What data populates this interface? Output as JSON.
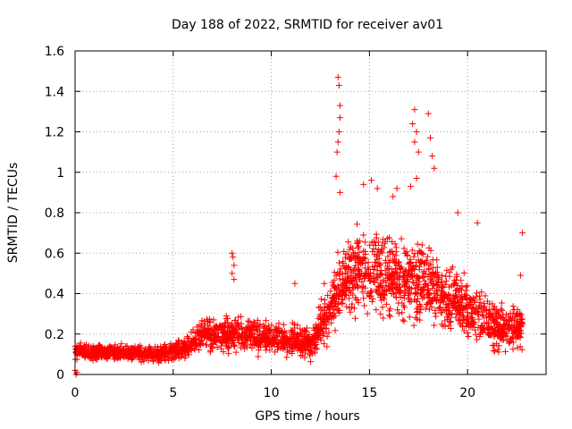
{
  "chart_data": {
    "type": "scatter",
    "title": "Day 188 of 2022, SRMTID for receiver av01",
    "xlabel": "GPS time / hours",
    "ylabel": "SRMTID / TECUs",
    "xlim": [
      0,
      24
    ],
    "ylim": [
      0,
      1.6
    ],
    "xticks": [
      0,
      5,
      10,
      15,
      20
    ],
    "xtick_labels": [
      "0",
      "5",
      "10",
      "15",
      "20"
    ],
    "yticks": [
      0,
      0.2,
      0.4,
      0.6,
      0.8,
      1.0,
      1.2,
      1.4,
      1.6
    ],
    "ytick_labels": [
      "0",
      "0.2",
      "0.4",
      "0.6",
      "0.8",
      "1",
      "1.2",
      "1.4",
      "1.6"
    ],
    "grid": true,
    "marker": "+",
    "marker_color": "#ff0000",
    "series_name": "av01",
    "x_extent": [
      0.0,
      22.8
    ],
    "profile": [
      {
        "t": 0.0,
        "base": 0.11,
        "spread": 0.05
      },
      {
        "t": 2.0,
        "base": 0.11,
        "spread": 0.05
      },
      {
        "t": 4.0,
        "base": 0.1,
        "spread": 0.05
      },
      {
        "t": 5.5,
        "base": 0.12,
        "spread": 0.06
      },
      {
        "t": 6.5,
        "base": 0.2,
        "spread": 0.1
      },
      {
        "t": 8.0,
        "base": 0.2,
        "spread": 0.12
      },
      {
        "t": 10.0,
        "base": 0.18,
        "spread": 0.1
      },
      {
        "t": 12.0,
        "base": 0.15,
        "spread": 0.1
      },
      {
        "t": 13.0,
        "base": 0.33,
        "spread": 0.2
      },
      {
        "t": 14.0,
        "base": 0.5,
        "spread": 0.28
      },
      {
        "t": 15.5,
        "base": 0.5,
        "spread": 0.28
      },
      {
        "t": 17.0,
        "base": 0.48,
        "spread": 0.26
      },
      {
        "t": 18.5,
        "base": 0.42,
        "spread": 0.22
      },
      {
        "t": 20.0,
        "base": 0.32,
        "spread": 0.18
      },
      {
        "t": 21.5,
        "base": 0.23,
        "spread": 0.14
      },
      {
        "t": 22.8,
        "base": 0.24,
        "spread": 0.14
      }
    ],
    "outliers": [
      {
        "x": 13.4,
        "y": 1.47
      },
      {
        "x": 13.45,
        "y": 1.43
      },
      {
        "x": 13.5,
        "y": 1.33
      },
      {
        "x": 13.5,
        "y": 1.27
      },
      {
        "x": 13.45,
        "y": 1.2
      },
      {
        "x": 13.4,
        "y": 1.15
      },
      {
        "x": 13.35,
        "y": 1.1
      },
      {
        "x": 13.3,
        "y": 0.98
      },
      {
        "x": 13.5,
        "y": 0.9
      },
      {
        "x": 17.3,
        "y": 1.31
      },
      {
        "x": 17.2,
        "y": 1.24
      },
      {
        "x": 17.4,
        "y": 1.2
      },
      {
        "x": 17.3,
        "y": 1.15
      },
      {
        "x": 17.5,
        "y": 1.1
      },
      {
        "x": 18.0,
        "y": 1.29
      },
      {
        "x": 18.1,
        "y": 1.17
      },
      {
        "x": 18.2,
        "y": 1.08
      },
      {
        "x": 18.3,
        "y": 1.02
      },
      {
        "x": 17.4,
        "y": 0.97
      },
      {
        "x": 17.1,
        "y": 0.93
      },
      {
        "x": 15.1,
        "y": 0.96
      },
      {
        "x": 14.7,
        "y": 0.94
      },
      {
        "x": 15.4,
        "y": 0.92
      },
      {
        "x": 16.4,
        "y": 0.92
      },
      {
        "x": 16.2,
        "y": 0.88
      },
      {
        "x": 19.5,
        "y": 0.8
      },
      {
        "x": 20.5,
        "y": 0.75
      },
      {
        "x": 22.8,
        "y": 0.7
      },
      {
        "x": 8.0,
        "y": 0.6
      },
      {
        "x": 8.05,
        "y": 0.58
      },
      {
        "x": 8.1,
        "y": 0.54
      },
      {
        "x": 8.0,
        "y": 0.5
      },
      {
        "x": 8.1,
        "y": 0.47
      },
      {
        "x": 11.2,
        "y": 0.45
      },
      {
        "x": 12.7,
        "y": 0.45
      },
      {
        "x": 22.7,
        "y": 0.49
      },
      {
        "x": 0.05,
        "y": 0.0
      },
      {
        "x": 0.1,
        "y": 0.01
      },
      {
        "x": 0.0,
        "y": 0.02
      }
    ]
  }
}
